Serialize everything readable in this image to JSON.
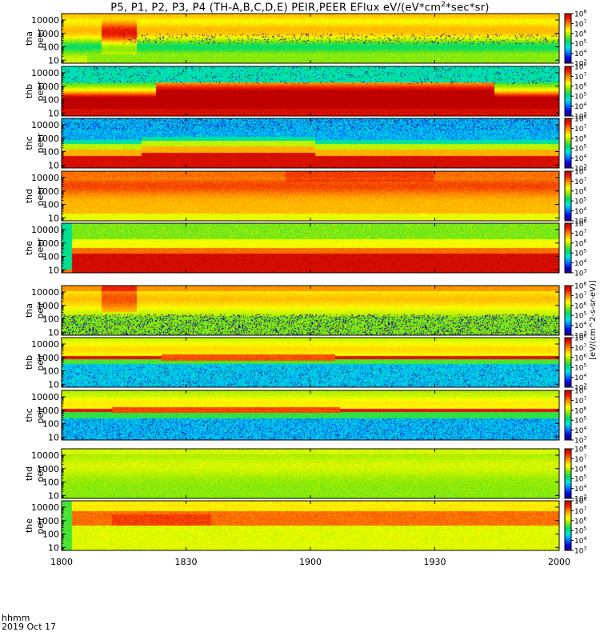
{
  "chart_data": {
    "type": "heatmap",
    "title": "P5, P1, P2, P3, P4 (TH-A,B,C,D,E) PEIR,PEER EFlux eV/(eV*cm^2*sec*sr)",
    "title_parts": {
      "before_sup": "P5, P1, P2, P3, P4 (TH-A,B,C,D,E) PEIR,PEER EFlux eV/(eV*cm",
      "sup": "2",
      "after_sup": "*sec*sr)"
    },
    "x_ticks": [
      "1800",
      "1830",
      "1900",
      "1930",
      "2000"
    ],
    "x_tick_values_min": [
      0,
      30,
      60,
      90,
      120
    ],
    "x_range_min": [
      0,
      120
    ],
    "x_sub_label": "hhmm",
    "date_label": "2019 Oct 17",
    "y_scale": "log",
    "y_range_eV": [
      6,
      30000
    ],
    "y_ticks": [
      "10",
      "100",
      "1000",
      "10000"
    ],
    "y_tick_values": [
      10,
      100,
      1000,
      10000
    ],
    "colorbar": {
      "scale": "log",
      "range": [
        1000,
        100000000
      ],
      "label": "[eV/(cm^2-s-sr-eV)]",
      "ticks": [
        {
          "base": "10",
          "exp": "3",
          "value": 1000
        },
        {
          "base": "10",
          "exp": "4",
          "value": 10000
        },
        {
          "base": "10",
          "exp": "5",
          "value": 100000
        },
        {
          "base": "10",
          "exp": "6",
          "value": 1000000
        },
        {
          "base": "10",
          "exp": "7",
          "value": 10000000
        },
        {
          "base": "10",
          "exp": "8",
          "value": 100000000
        }
      ]
    },
    "panels": [
      {
        "probe": "tha",
        "species": "peer",
        "line1": "tha",
        "line2": "peer",
        "profile": "peer_a"
      },
      {
        "probe": "thb",
        "species": "peer",
        "line1": "thb",
        "line2": "peer",
        "profile": "peer_b"
      },
      {
        "probe": "thc",
        "species": "peer",
        "line1": "thc",
        "line2": "peer",
        "profile": "peer_c"
      },
      {
        "probe": "thd",
        "species": "peer",
        "line1": "thd",
        "line2": "peer",
        "profile": "peer_d"
      },
      {
        "probe": "the",
        "species": "peer",
        "line1": "the",
        "line2": "peer",
        "profile": "peer_e"
      },
      {
        "probe": "tha",
        "species": "peir",
        "line1": "tha",
        "line2": "peir",
        "profile": "peir_a"
      },
      {
        "probe": "thb",
        "species": "peir",
        "line1": "thb",
        "line2": "peir",
        "profile": "peir_b"
      },
      {
        "probe": "thc",
        "species": "peir",
        "line1": "thc",
        "line2": "peir",
        "profile": "peir_c"
      },
      {
        "probe": "thd",
        "species": "peir",
        "line1": "thd",
        "line2": "peir",
        "profile": "peir_d"
      },
      {
        "probe": "the",
        "species": "peir",
        "line1": "the",
        "line2": "peir",
        "profile": "peir_e"
      }
    ]
  }
}
